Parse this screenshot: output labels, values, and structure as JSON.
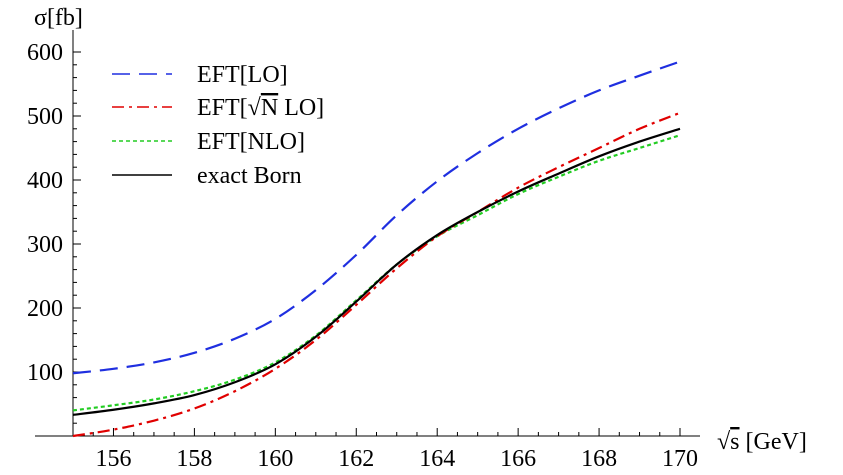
{
  "chart_data": {
    "type": "line",
    "ylabel": "σ[fb]",
    "xlabel": "√s [GeV]",
    "xlim": [
      155,
      170
    ],
    "ylim": [
      0,
      600
    ],
    "xticks": [
      156,
      158,
      160,
      162,
      164,
      166,
      168,
      170
    ],
    "yticks": [
      100,
      200,
      300,
      400,
      500,
      600
    ],
    "grid": false,
    "legend_position": "top-left",
    "series": [
      {
        "name": "EFT[LO]",
        "color": "#1f2fe0",
        "dash": "dashed",
        "x": [
          155,
          156,
          157,
          158,
          159,
          160,
          161,
          162,
          163,
          164,
          165,
          166,
          167,
          168,
          169,
          170
        ],
        "y": [
          98,
          105,
          115,
          130,
          152,
          183,
          228,
          283,
          345,
          398,
          442,
          480,
          512,
          540,
          563,
          585
        ]
      },
      {
        "name": "EFT[√N LO]",
        "color": "#e00000",
        "dash": "dashdot",
        "x": [
          155,
          156,
          157,
          158,
          159,
          160,
          161,
          162,
          163,
          164,
          165,
          166,
          167,
          168,
          169,
          170
        ],
        "y": [
          0,
          10,
          24,
          43,
          70,
          105,
          150,
          205,
          262,
          312,
          350,
          388,
          420,
          450,
          480,
          505
        ]
      },
      {
        "name": "EFT[NLO]",
        "color": "#22cc22",
        "dash": "dotted",
        "x": [
          155,
          156,
          157,
          158,
          159,
          160,
          161,
          162,
          163,
          164,
          165,
          166,
          167,
          168,
          169,
          170
        ],
        "y": [
          40,
          48,
          57,
          70,
          88,
          115,
          157,
          212,
          268,
          312,
          345,
          378,
          405,
          430,
          450,
          470
        ]
      },
      {
        "name": "exact Born",
        "color": "#000000",
        "dash": "solid",
        "x": [
          155,
          156,
          157,
          158,
          159,
          160,
          161,
          162,
          163,
          164,
          165,
          166,
          167,
          168,
          169,
          170
        ],
        "y": [
          33,
          41,
          51,
          64,
          84,
          112,
          155,
          210,
          268,
          314,
          350,
          382,
          410,
          437,
          460,
          480
        ]
      }
    ]
  }
}
